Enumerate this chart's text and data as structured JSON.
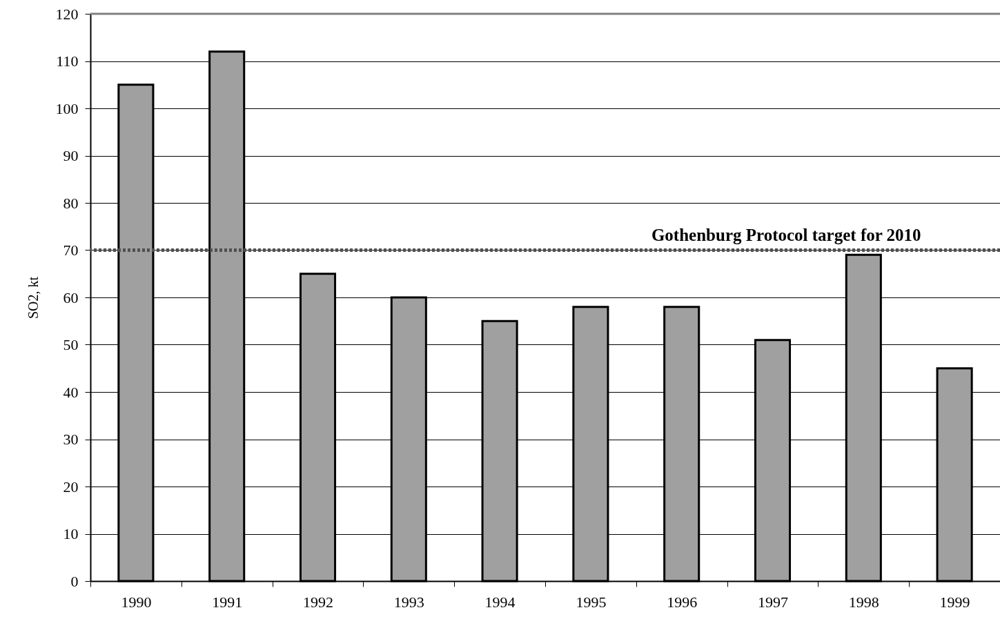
{
  "chart_data": {
    "type": "bar",
    "ylabel": "SO2, kt",
    "categories": [
      "1990",
      "1991",
      "1992",
      "1993",
      "1994",
      "1995",
      "1996",
      "1997",
      "1998",
      "1999"
    ],
    "values": [
      105,
      112,
      65,
      60,
      55,
      58,
      58,
      51,
      69,
      45
    ],
    "color": "#a0a0a0",
    "ylim": [
      0,
      120
    ],
    "yticks": [
      0,
      10,
      20,
      30,
      40,
      50,
      60,
      70,
      80,
      90,
      100,
      110,
      120
    ],
    "grid": "y",
    "ref_lines": [
      {
        "axis": "y",
        "value": 70,
        "label": "Gothenburg Protocol target for 2010",
        "color": "#505050",
        "line_style": "dotted"
      }
    ]
  }
}
